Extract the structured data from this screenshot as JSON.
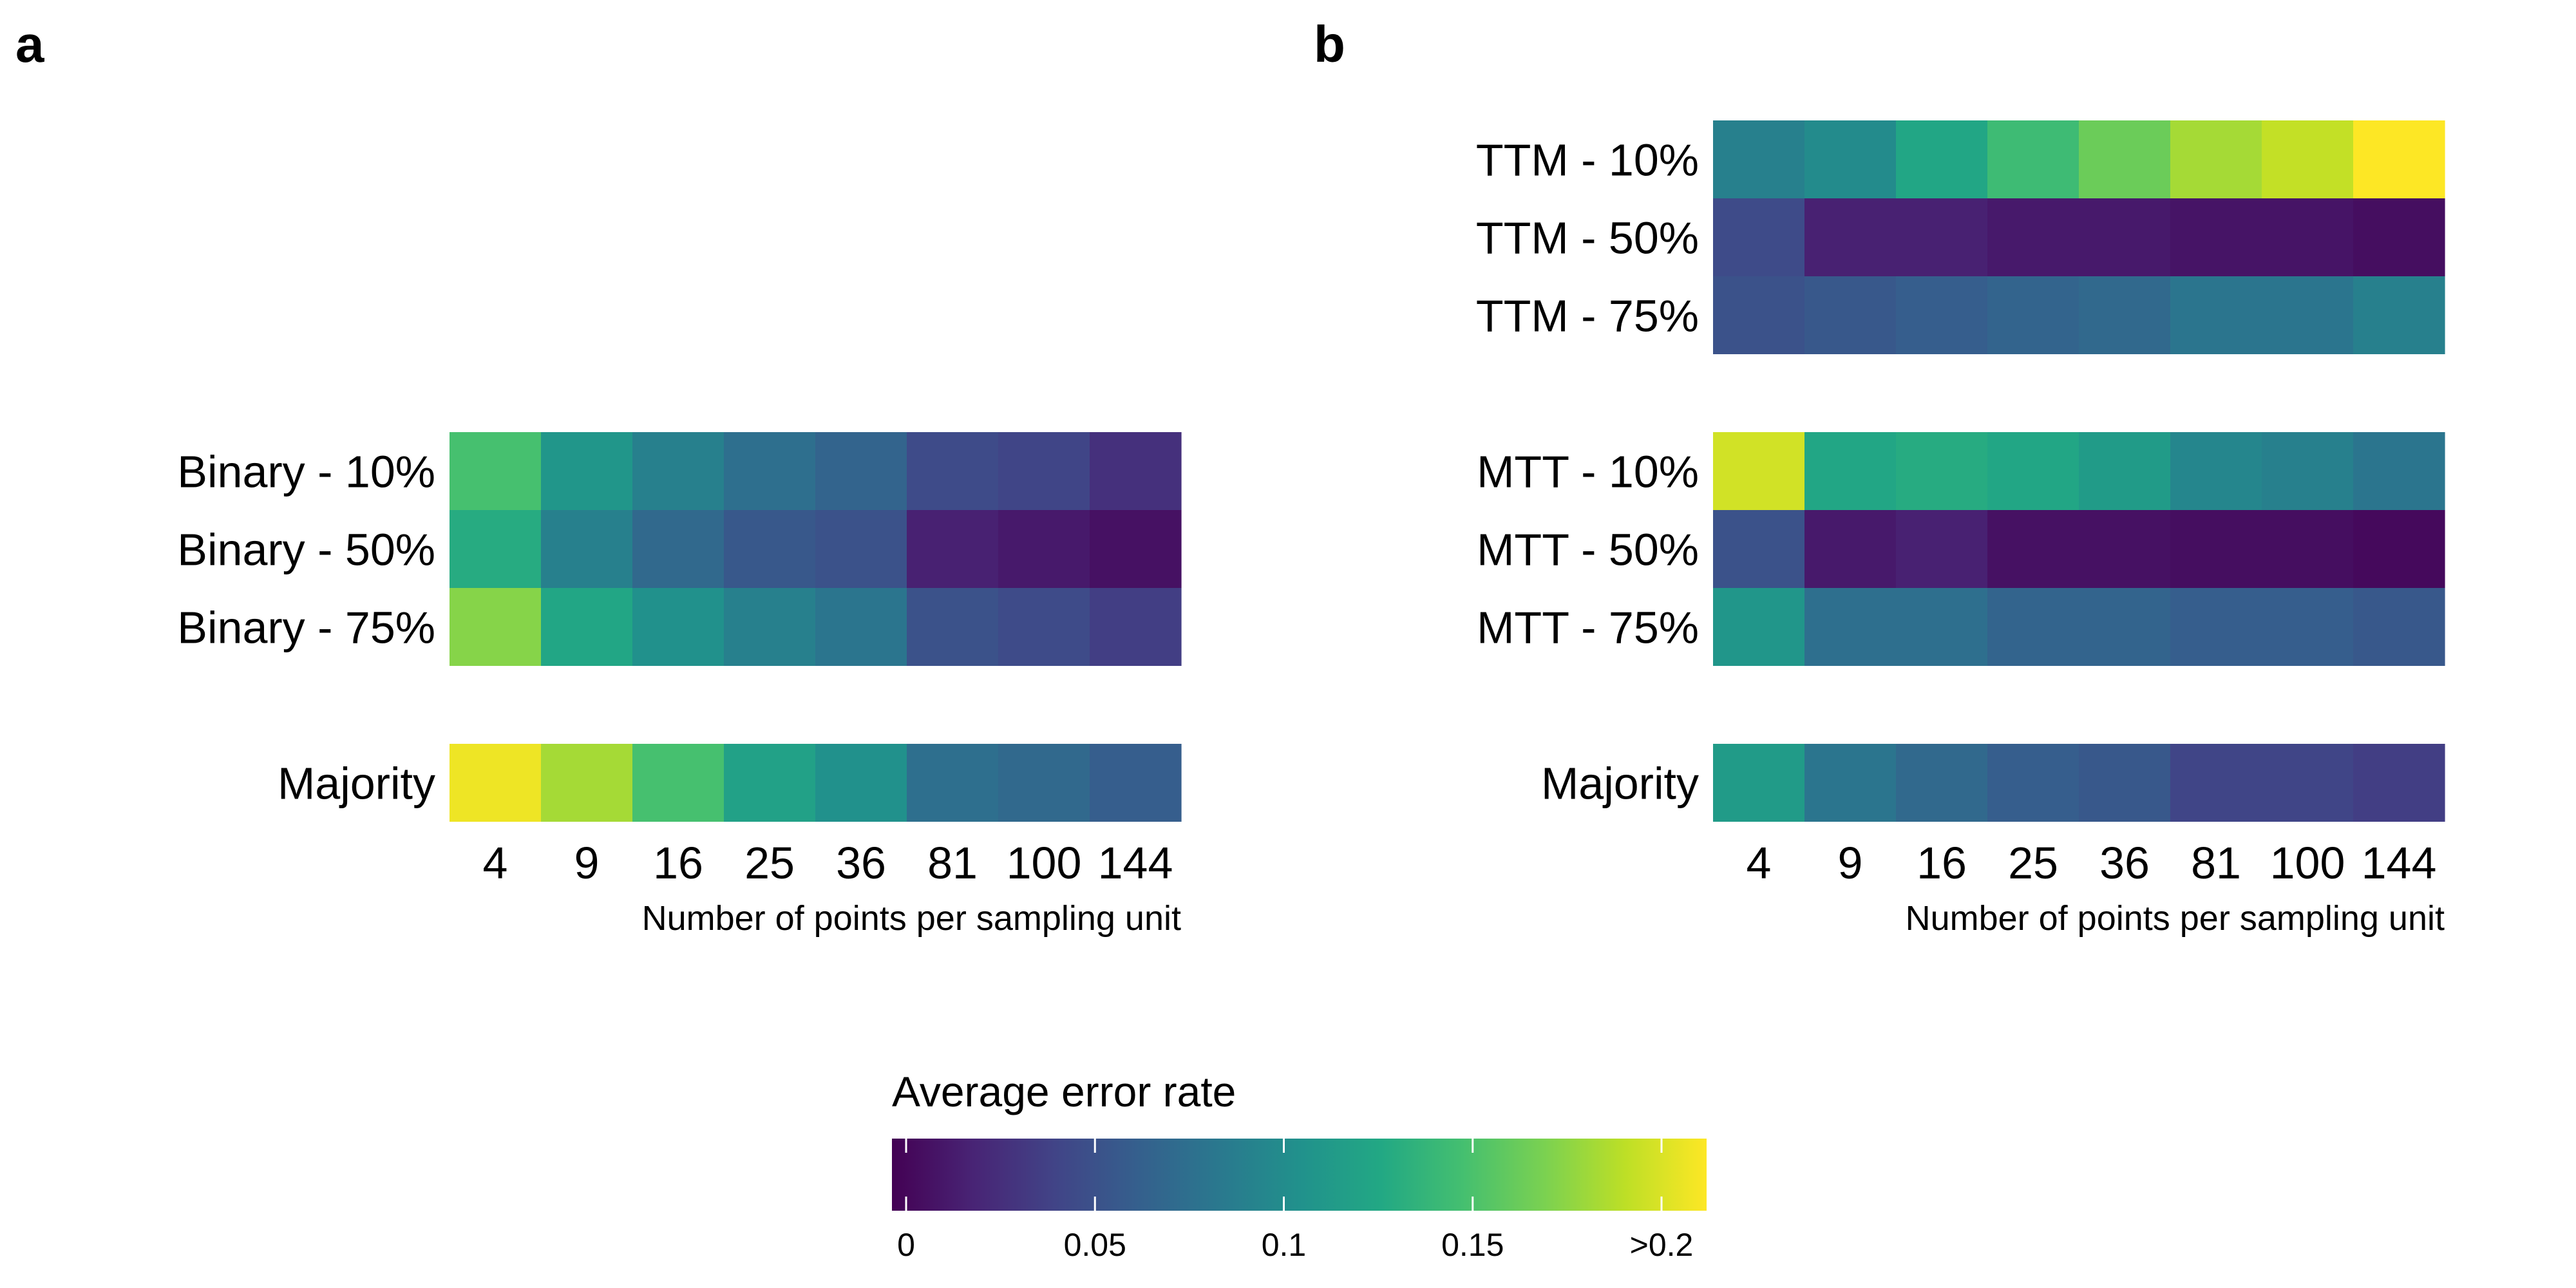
{
  "chart_data": {
    "type": "heatmap",
    "x_categories": [
      "4",
      "9",
      "16",
      "25",
      "36",
      "81",
      "100",
      "144"
    ],
    "colorbar": {
      "title": "Average error rate",
      "range": [
        0,
        0.22
      ],
      "ticks": [
        {
          "value": 0,
          "label": "0"
        },
        {
          "value": 0.05,
          "label": "0.05"
        },
        {
          "value": 0.1,
          "label": "0.1"
        },
        {
          "value": 0.15,
          "label": "0.15"
        },
        {
          "value": 0.2,
          "label": ">0.2"
        }
      ],
      "palette": "viridis"
    },
    "panels": [
      {
        "letter": "a",
        "xlabel": "Number of points per sampling unit",
        "groups": [
          {
            "rows": [
              {
                "label": "Binary - 10%",
                "values": [
                  0.155,
                  0.115,
                  0.095,
                  0.08,
                  0.07,
                  0.05,
                  0.045,
                  0.03
                ]
              },
              {
                "label": "Binary - 50%",
                "values": [
                  0.135,
                  0.095,
                  0.075,
                  0.06,
                  0.055,
                  0.02,
                  0.015,
                  0.01
                ]
              },
              {
                "label": "Binary - 75%",
                "values": [
                  0.18,
                  0.13,
                  0.11,
                  0.095,
                  0.085,
                  0.055,
                  0.05,
                  0.04
                ]
              }
            ]
          },
          {
            "rows": [
              {
                "label": "Majority",
                "values": [
                  0.215,
                  0.19,
                  0.155,
                  0.125,
                  0.11,
                  0.08,
                  0.075,
                  0.065
                ]
              }
            ]
          }
        ]
      },
      {
        "letter": "b",
        "xlabel": "Number of points per sampling unit",
        "groups": [
          {
            "rows": [
              {
                "label": "TTM - 10%",
                "values": [
                  0.095,
                  0.105,
                  0.13,
                  0.15,
                  0.17,
                  0.19,
                  0.2,
                  0.22
                ]
              },
              {
                "label": "TTM - 50%",
                "values": [
                  0.05,
                  0.02,
                  0.02,
                  0.015,
                  0.015,
                  0.012,
                  0.012,
                  0.008
                ]
              },
              {
                "label": "TTM - 75%",
                "values": [
                  0.055,
                  0.06,
                  0.065,
                  0.07,
                  0.075,
                  0.085,
                  0.085,
                  0.095
                ]
              }
            ]
          },
          {
            "rows": [
              {
                "label": "MTT - 10%",
                "values": [
                  0.205,
                  0.13,
                  0.135,
                  0.13,
                  0.12,
                  0.1,
                  0.095,
                  0.085
                ]
              },
              {
                "label": "MTT - 50%",
                "values": [
                  0.055,
                  0.015,
                  0.02,
                  0.01,
                  0.01,
                  0.008,
                  0.008,
                  0.005
                ]
              },
              {
                "label": "MTT - 75%",
                "values": [
                  0.115,
                  0.08,
                  0.08,
                  0.07,
                  0.07,
                  0.065,
                  0.065,
                  0.06
                ]
              }
            ]
          },
          {
            "rows": [
              {
                "label": "Majority",
                "values": [
                  0.12,
                  0.085,
                  0.075,
                  0.065,
                  0.06,
                  0.045,
                  0.045,
                  0.04
                ]
              }
            ]
          }
        ]
      }
    ]
  }
}
